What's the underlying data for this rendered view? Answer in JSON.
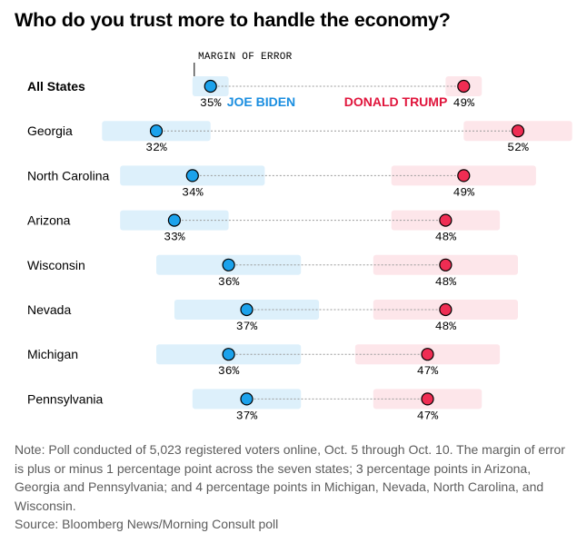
{
  "title": "Who do you trust more to handle the economy?",
  "colors": {
    "biden": "#1ba2ec",
    "biden_band": "#ddf0fb",
    "biden_label": "#1a8ee0",
    "trump": "#ef2d53",
    "trump_band": "#fde6ea",
    "trump_label": "#e0153c",
    "connector": "#9a9a9a"
  },
  "chart_data": {
    "type": "dot-plot",
    "title": "Who do you trust more to handle the economy?",
    "x_range": [
      30,
      55
    ],
    "margin_of_error_label": "MARGIN OF ERROR",
    "legend": {
      "biden": "JOE BIDEN",
      "trump": "DONALD TRUMP"
    },
    "series": [
      {
        "name": "JOE BIDEN",
        "key": "biden"
      },
      {
        "name": "DONALD TRUMP",
        "key": "trump"
      }
    ],
    "rows": [
      {
        "label": "All States",
        "bold": true,
        "biden": 35,
        "trump": 49,
        "moe": 1
      },
      {
        "label": "Georgia",
        "biden": 32,
        "trump": 52,
        "moe": 3
      },
      {
        "label": "North Carolina",
        "biden": 34,
        "trump": 49,
        "moe": 4
      },
      {
        "label": "Arizona",
        "biden": 33,
        "trump": 48,
        "moe": 3
      },
      {
        "label": "Wisconsin",
        "biden": 36,
        "trump": 48,
        "moe": 4
      },
      {
        "label": "Nevada",
        "biden": 37,
        "trump": 48,
        "moe": 4
      },
      {
        "label": "Michigan",
        "biden": 36,
        "trump": 47,
        "moe": 4
      },
      {
        "label": "Pennsylvania",
        "biden": 37,
        "trump": 47,
        "moe": 3
      }
    ]
  },
  "note": "Note: Poll conducted of 5,023 registered voters online, Oct. 5 through Oct. 10. The margin of error is plus or minus 1 percentage point across the seven states; 3 percentage points in Arizona, Georgia and Pennsylvania; and 4 percentage points in Michigan, Nevada, North Carolina, and Wisconsin.",
  "source": "Source: Bloomberg News/Morning Consult poll"
}
